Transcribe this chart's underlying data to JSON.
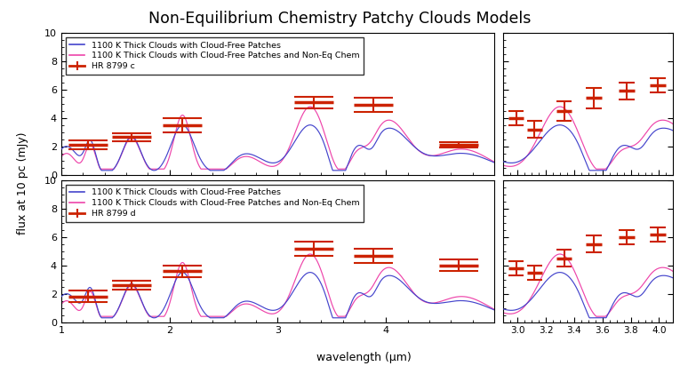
{
  "title": "Non-Equilibrium Chemistry Patchy Clouds Models",
  "xlabel": "wavelength (μm)",
  "ylabel": "flux at 10 pc (mJy)",
  "blue_label": "1100 K Thick Clouds with Cloud-Free Patches",
  "pink_label": "1100 K Thick Clouds with Cloud-Free Patches and Non-Eq Chem",
  "obs_label_c": "HR 8799 c",
  "obs_label_d": "HR 8799 d",
  "blue_color": "#4444cc",
  "pink_color": "#ee44aa",
  "obs_color": "#cc2200",
  "ylim": [
    0,
    10
  ],
  "yticks": [
    0,
    2,
    4,
    6,
    8,
    10
  ],
  "xticks_left": [
    1,
    2,
    3,
    4
  ],
  "xticks_right": [
    3.0,
    3.2,
    3.4,
    3.6,
    3.8,
    4.0
  ],
  "obs_c_left": {
    "x": [
      1.25,
      1.65,
      2.12,
      3.33,
      3.88,
      4.67
    ],
    "y": [
      2.1,
      2.65,
      3.5,
      5.1,
      4.9,
      2.1
    ],
    "yerr": [
      0.3,
      0.3,
      0.5,
      0.4,
      0.5,
      0.2
    ],
    "bw": 0.18
  },
  "obs_c_right": {
    "x": [
      2.99,
      3.12,
      3.33,
      3.54,
      3.77,
      3.99
    ],
    "y": [
      4.0,
      3.2,
      4.5,
      5.4,
      5.9,
      6.3
    ],
    "yerr": [
      0.5,
      0.6,
      0.7,
      0.7,
      0.6,
      0.5
    ],
    "bw": 0.055
  },
  "obs_d_left": {
    "x": [
      1.25,
      1.65,
      2.12,
      3.33,
      3.88,
      4.67
    ],
    "y": [
      1.8,
      2.6,
      3.6,
      5.2,
      4.7,
      4.0
    ],
    "yerr": [
      0.4,
      0.3,
      0.4,
      0.5,
      0.5,
      0.4
    ],
    "bw": 0.18
  },
  "obs_d_right": {
    "x": [
      2.99,
      3.12,
      3.33,
      3.54,
      3.77,
      3.99
    ],
    "y": [
      3.8,
      3.5,
      4.5,
      5.5,
      6.0,
      6.2
    ],
    "yerr": [
      0.5,
      0.5,
      0.6,
      0.6,
      0.5,
      0.5
    ],
    "bw": 0.055
  }
}
